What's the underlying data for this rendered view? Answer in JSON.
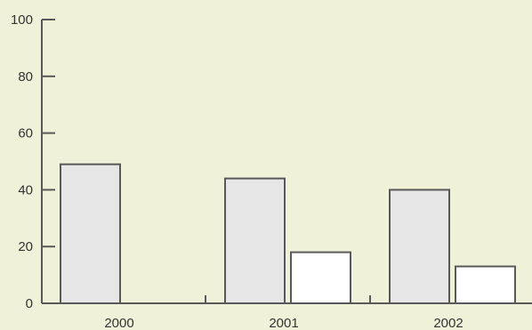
{
  "chart_data": {
    "type": "bar",
    "categories": [
      "2000",
      "2001",
      "2002"
    ],
    "series": [
      {
        "values": [
          49,
          44,
          40
        ],
        "fill": "#e6e6e6"
      },
      {
        "values": [
          null,
          18,
          13
        ],
        "fill": "#ffffff"
      }
    ],
    "ylim": [
      0,
      100
    ],
    "y_ticks": [
      "0",
      "20",
      "40",
      "60",
      "80",
      "100"
    ],
    "title": "",
    "xlabel": "",
    "ylabel": "",
    "grid": false,
    "colors": {
      "background": "#eff2d8",
      "axis": "#595959",
      "bar_outline": "#595959",
      "text": "#333333"
    }
  }
}
